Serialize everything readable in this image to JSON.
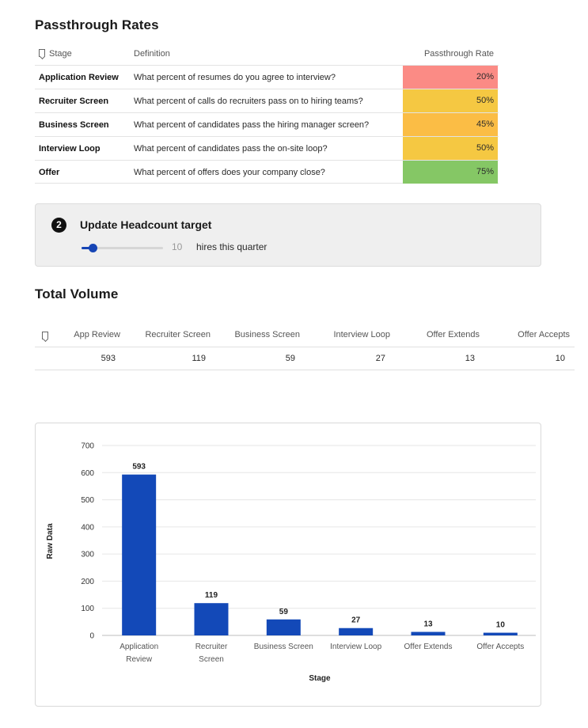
{
  "passthrough": {
    "title": "Passthrough Rates",
    "headers": {
      "stage": "Stage",
      "definition": "Definition",
      "rate": "Passthrough Rate"
    },
    "rows": [
      {
        "stage": "Application Review",
        "definition": "What percent of resumes do you agree to interview?",
        "rate": "20%",
        "color": "#fb8b85"
      },
      {
        "stage": "Recruiter Screen",
        "definition": "What percent of calls do recruiters pass on to hiring teams?",
        "rate": "50%",
        "color": "#f5c842"
      },
      {
        "stage": "Business Screen",
        "definition": "What percent of candidates pass the hiring manager screen?",
        "rate": "45%",
        "color": "#fbbd45"
      },
      {
        "stage": "Interview Loop",
        "definition": "What percent of candidates pass the on-site loop?",
        "rate": "50%",
        "color": "#f5c842"
      },
      {
        "stage": "Offer",
        "definition": "What percent of offers does your company close?",
        "rate": "75%",
        "color": "#85c765"
      }
    ]
  },
  "headcount": {
    "step": "2",
    "title": "Update Headcount target",
    "value": "10",
    "suffix": "hires this quarter",
    "slider_fraction": 0.14,
    "accent": "#1645b5"
  },
  "total_volume": {
    "title": "Total Volume",
    "headers": [
      "App Review",
      "Recruiter Screen",
      "Business Screen",
      "Interview Loop",
      "Offer Extends",
      "Offer Accepts"
    ],
    "values": [
      "593",
      "119",
      "59",
      "27",
      "13",
      "10"
    ]
  },
  "chart_data": {
    "type": "bar",
    "categories": [
      "Application Review",
      "Recruiter Screen",
      "Business Screen",
      "Interview Loop",
      "Offer Extends",
      "Offer Accepts"
    ],
    "category_lines": [
      [
        "Application",
        "Review"
      ],
      [
        "Recruiter",
        "Screen"
      ],
      [
        "Business Screen"
      ],
      [
        "Interview Loop"
      ],
      [
        "Offer Extends"
      ],
      [
        "Offer Accepts"
      ]
    ],
    "values": [
      593,
      119,
      59,
      27,
      13,
      10
    ],
    "xlabel": "Stage",
    "ylabel": "Raw Data",
    "ylim": [
      0,
      700
    ],
    "yticks": [
      0,
      100,
      200,
      300,
      400,
      500,
      600,
      700
    ],
    "grid": true,
    "bar_color": "#1349b8"
  }
}
